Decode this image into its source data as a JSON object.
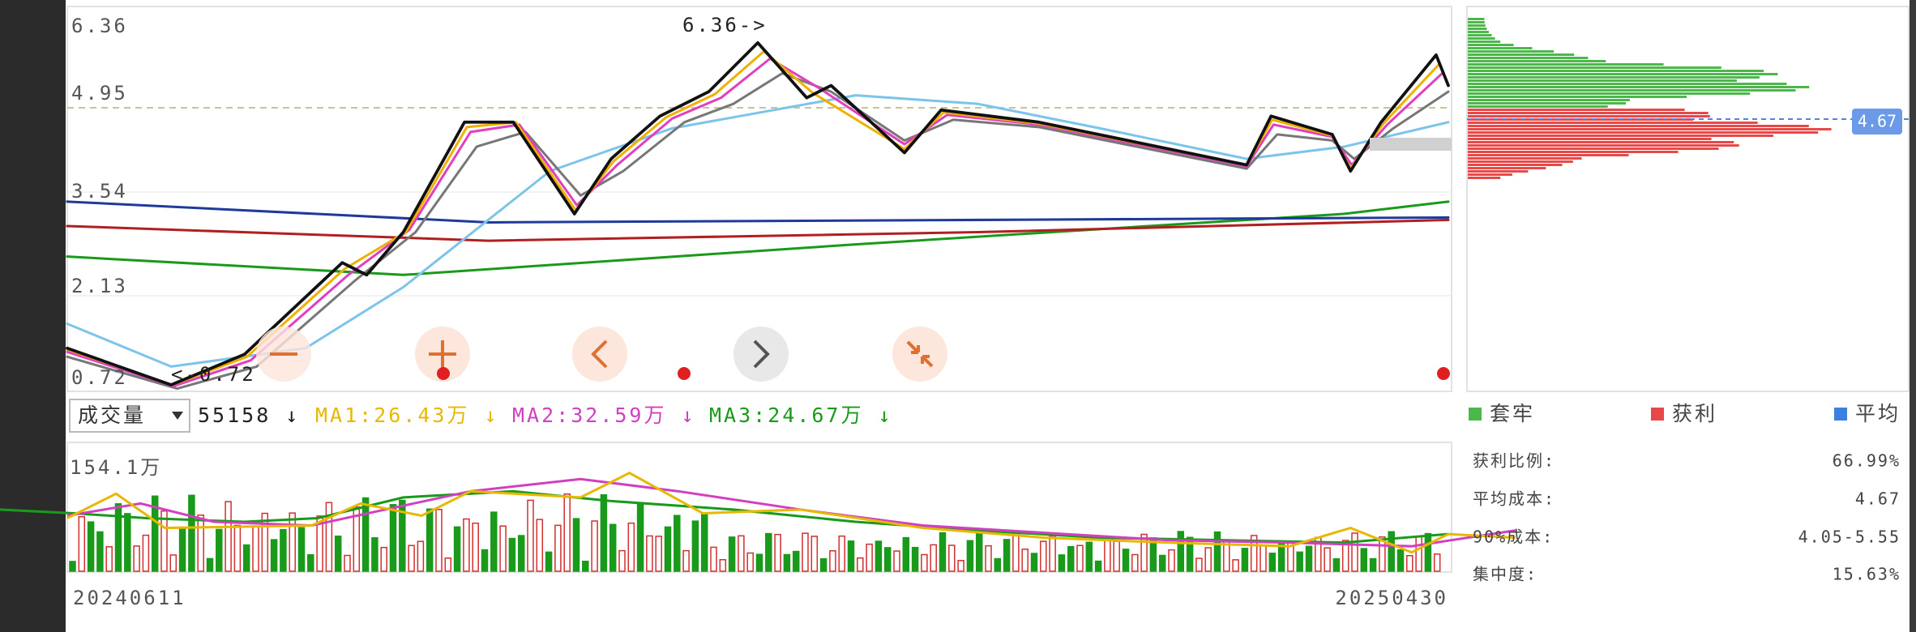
{
  "axis_labels": [
    "6.36",
    "4.95",
    "3.54",
    "2.13",
    "0.72"
  ],
  "annotations": {
    "high": "6.36->",
    "low": "<-0.72"
  },
  "volume_legend": {
    "selector": "成交量",
    "volume": "55158 ↓",
    "ma1": "MA1:26.43万 ↓",
    "ma2": "MA2:32.59万 ↓",
    "ma3": "MA3:24.67万 ↓"
  },
  "volume_axis_label": "154.1万",
  "dates": {
    "start": "20240611",
    "end": "20250430"
  },
  "chip_price_tag": "4.67",
  "chip_legend": [
    "套牢",
    "获利",
    "平均"
  ],
  "chip_stats": [
    {
      "label": "获利比例:",
      "value": "66.99%"
    },
    {
      "label": "平均成本:",
      "value": "4.67"
    },
    {
      "label": "90%成本:",
      "value": "4.05-5.55"
    },
    {
      "label": "集中度:",
      "value": "15.63%"
    }
  ]
}
